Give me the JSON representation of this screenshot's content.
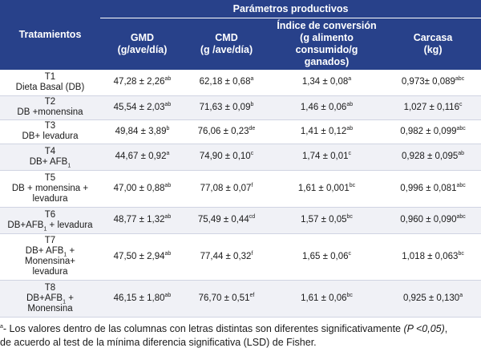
{
  "header": {
    "group_label": "Parámetros productivos",
    "treatments_label": "Tratamientos",
    "columns": [
      {
        "line1": "GMD",
        "line2": "(g/ave/día)"
      },
      {
        "line1": "CMD",
        "line2": "(g /ave/día)"
      },
      {
        "line1": "Índice de conversión",
        "line2": "(g alimento consumido/g",
        "line3": "ganados)"
      },
      {
        "line1": "Carcasa",
        "line2": "(kg)"
      }
    ]
  },
  "rows": [
    {
      "lines": [
        "T1",
        "Dieta Basal (DB)"
      ],
      "gmd": "47,28 ± 2,26",
      "gmd_sup": "ab",
      "cmd": "62,18 ± 0,68",
      "cmd_sup": "a",
      "ic": "1,34 ± 0,08",
      "ic_sup": "a",
      "carc": "0,973± 0,089",
      "carc_sup": "abc"
    },
    {
      "lines": [
        "T2",
        "DB +monensina"
      ],
      "gmd": "45,54 ± 2,03",
      "gmd_sup": "ab",
      "cmd": "71,63 ± 0,09",
      "cmd_sup": "b",
      "ic": "1,46 ± 0,06",
      "ic_sup": "ab",
      "carc": "1,027 ± 0,116",
      "carc_sup": "c"
    },
    {
      "lines": [
        "T3",
        "DB+ levadura"
      ],
      "gmd": "49,84 ± 3,89",
      "gmd_sup": "b",
      "cmd": "76,06 ± 0,23",
      "cmd_sup": "de",
      "ic": "1,41 ± 0,12",
      "ic_sup": "ab",
      "carc": "0,982 ± 0,099",
      "carc_sup": "abc"
    },
    {
      "lines": [
        "T4",
        "DB+ AFB"
      ],
      "line_sub": "1",
      "gmd": "44,67 ± 0,92",
      "gmd_sup": "a",
      "cmd": "74,90 ± 0,10",
      "cmd_sup": "c",
      "ic": "1,74 ± 0,01",
      "ic_sup": "c",
      "carc": "0,928 ± 0,095",
      "carc_sup": "ab"
    },
    {
      "lines": [
        "T5",
        "DB + monensina +",
        "levadura"
      ],
      "gmd": "47,00 ± 0,88",
      "gmd_sup": "ab",
      "cmd": "77,08 ± 0,07",
      "cmd_sup": "f",
      "ic": "1,61 ± 0,001",
      "ic_sup": "bc",
      "carc": "0,996 ± 0,081",
      "carc_sup": "abc"
    },
    {
      "lines": [
        "T6",
        "DB+AFB",
        " + levadura"
      ],
      "line_sub": "1",
      "gmd": "48,77 ± 1,32",
      "gmd_sup": "ab",
      "cmd": "75,49 ± 0,44",
      "cmd_sup": "cd",
      "ic": "1,57 ± 0,05",
      "ic_sup": "bc",
      "carc": "0,960 ± 0,090",
      "carc_sup": "abc"
    },
    {
      "lines": [
        "T7",
        "DB+ AFB",
        " +",
        "Monensina+",
        "levadura"
      ],
      "line_sub": "1",
      "gmd": "47,50 ± 2,94",
      "gmd_sup": "ab",
      "cmd": "77,44 ± 0,32",
      "cmd_sup": "f",
      "ic": "1,65 ± 0,06",
      "ic_sup": "c",
      "carc": "1,018 ± 0,063",
      "carc_sup": "bc"
    },
    {
      "lines": [
        "T8",
        "DB+AFB",
        " +",
        "Monensina"
      ],
      "line_sub": "1",
      "gmd": "46,15 ± 1,80",
      "gmd_sup": "ab",
      "cmd": "76,70 ± 0,51",
      "cmd_sup": "ef",
      "ic": "1,61 ± 0,06",
      "ic_sup": "bc",
      "carc": "0,925 ± 0,130",
      "carc_sup": "a"
    }
  ],
  "footnote": {
    "marker": "a",
    "text_before": "- Los valores dentro de las columnas con letras distintas son diferentes significativamente ",
    "p_value": "(P <0,05)",
    "text_after": ",",
    "line2": "de acuerdo al test de la mínima diferencia significativa (LSD) de Fisher."
  }
}
